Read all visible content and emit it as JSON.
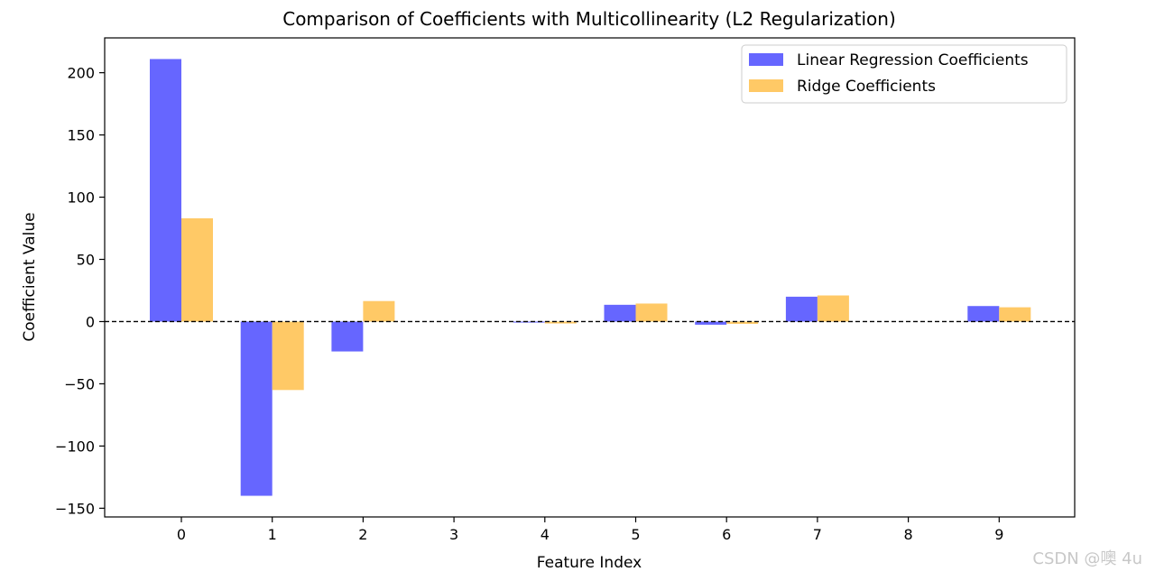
{
  "chart_data": {
    "type": "bar",
    "title": "Comparison of Coefficients with Multicollinearity (L2 Regularization)",
    "xlabel": "Feature Index",
    "ylabel": "Coefficient Value",
    "categories": [
      "0",
      "1",
      "2",
      "3",
      "4",
      "5",
      "6",
      "7",
      "8",
      "9"
    ],
    "series": [
      {
        "name": "Linear Regression Coefficients",
        "color": "#6666ff",
        "values": [
          211,
          -140,
          -24,
          0,
          -0.8,
          13.5,
          -2.5,
          20,
          0,
          12.5
        ]
      },
      {
        "name": "Ridge Coefficients",
        "color": "#ffc966",
        "values": [
          83,
          -55,
          16.5,
          0,
          -1.5,
          14.5,
          -1.8,
          21,
          0,
          11.5
        ]
      }
    ],
    "ylim": [
      -157,
      228
    ],
    "yticks": [
      -150,
      -100,
      -50,
      0,
      50,
      100,
      150,
      200
    ],
    "ytick_labels": [
      "−150",
      "−100",
      "−50",
      "0",
      "50",
      "100",
      "150",
      "200"
    ],
    "reference_line": {
      "y": 0,
      "style": "dashed",
      "color": "#000000"
    },
    "grid": false,
    "legend_position": "top-right"
  },
  "watermark": "CSDN @噢 4u"
}
